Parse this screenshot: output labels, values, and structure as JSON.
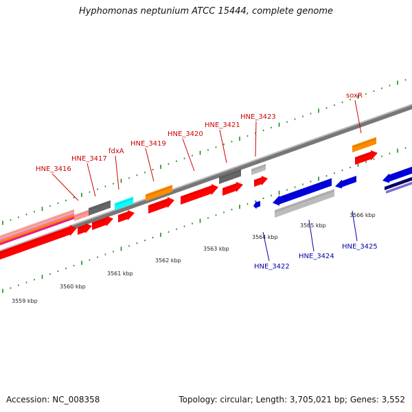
{
  "title": "Hyphomonas neptunium ATCC 15444, complete genome",
  "footer": {
    "accession": "Accession: NC_008358",
    "summary": "Topology: circular; Length: 3,705,021 bp; Genes: 3,552"
  },
  "colors": {
    "tick_green": "#1a8a1a",
    "forward_red": "#ff0000",
    "reverse_blue": "#0000dd",
    "orange": "#ff8c00",
    "grey": "#666666",
    "light_grey": "#bbbbbb",
    "cyan": "#00ffff",
    "pink": "#ff88aa",
    "magenta": "#ff1493",
    "navy": "#000066",
    "lavender": "#8877dd",
    "backbone": "#888888",
    "label_red": "#cc0000",
    "label_blue": "#0000aa"
  },
  "kbp_labels": [
    "3559 kbp",
    "3560 kbp",
    "3561 kbp",
    "3562 kbp",
    "3563 kbp",
    "3564 kbp",
    "3565 kbp",
    "3566 kbp"
  ],
  "forward_labels": [
    "HNE_3416",
    "HNE_3417",
    "fdxA",
    "HNE_3419",
    "HNE_3420",
    "HNE_3421",
    "HNE_3423",
    "soxR"
  ],
  "reverse_labels": [
    "HNE_3422",
    "HNE_3424",
    "HNE_3425"
  ]
}
